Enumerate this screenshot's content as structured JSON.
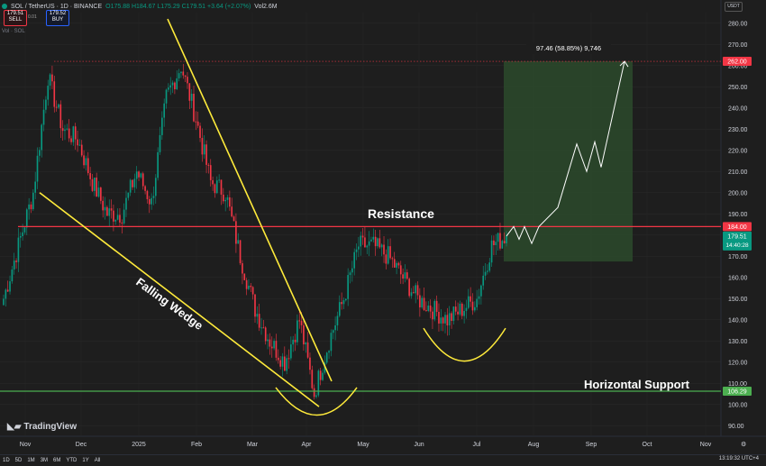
{
  "header": {
    "symbol": "SOL / TetherUS · 1D · BINANCE",
    "ohlc": "O175.88 H184.67 L175.29 C179.51 +3.64 (+2.07%)",
    "volume": "Vol2.6M",
    "sell_price": "179.51",
    "sell_label": "SELL",
    "spread": "0.01",
    "buy_price": "179.52",
    "buy_label": "BUY",
    "sub_indicator": "Vol · SOL",
    "currency": "USDT"
  },
  "branding": {
    "logo_text": "TradingView"
  },
  "bottom_bar": {
    "ranges": [
      "1D",
      "5D",
      "1M",
      "3M",
      "6M",
      "YTD",
      "1Y",
      "All"
    ],
    "clock": "13:19:32 UTC+4"
  },
  "colors": {
    "background": "#1e1e1e",
    "resistance": "#f23645",
    "support": "#4caf50",
    "wedge": "#ffeb3b",
    "target_box": "#2b4a2b",
    "up_candle": "#089981",
    "down_candle": "#f23645"
  },
  "chart_data": {
    "type": "candlestick",
    "x_labels": [
      "Nov",
      "Dec",
      "2025",
      "Feb",
      "Mar",
      "Apr",
      "May",
      "Jun",
      "Jul",
      "Aug",
      "Sep",
      "Oct",
      "Nov"
    ],
    "y_ticks": [
      90,
      100,
      110,
      120,
      130,
      140,
      150,
      160,
      170,
      180,
      190,
      200,
      210,
      220,
      230,
      240,
      250,
      260,
      270,
      280
    ],
    "ylim": [
      85,
      285
    ],
    "close_path": [
      [
        "Nov",
        150
      ],
      [
        "Nov",
        175
      ],
      [
        "Nov",
        200
      ],
      [
        "Nov",
        255
      ],
      [
        "Dec",
        230
      ],
      [
        "Dec",
        225
      ],
      [
        "Dec",
        205
      ],
      [
        "Dec",
        190
      ],
      [
        "2025",
        190
      ],
      [
        "2025",
        210
      ],
      [
        "2025",
        195
      ],
      [
        "2025",
        245
      ],
      [
        "2025",
        260
      ],
      [
        "Feb",
        235
      ],
      [
        "Feb",
        205
      ],
      [
        "Feb",
        200
      ],
      [
        "Mar",
        170
      ],
      [
        "Mar",
        145
      ],
      [
        "Mar",
        130
      ],
      [
        "Mar",
        120
      ],
      [
        "Apr",
        140
      ],
      [
        "Apr",
        105
      ],
      [
        "Apr",
        130
      ],
      [
        "Apr",
        150
      ],
      [
        "May",
        175
      ],
      [
        "May",
        175
      ],
      [
        "May",
        170
      ],
      [
        "Jun",
        160
      ],
      [
        "Jun",
        150
      ],
      [
        "Jun",
        145
      ],
      [
        "Jun",
        140
      ],
      [
        "Jul",
        145
      ],
      [
        "Jul",
        150
      ],
      [
        "Jul",
        175
      ],
      [
        "Jul",
        179.51
      ]
    ],
    "levels": {
      "resistance": 184.0,
      "support": 106.29,
      "current": 179.51,
      "target": 262.0
    },
    "price_labels": {
      "resistance": "184.00",
      "support": "106.29",
      "current": "179.51",
      "countdown": "14:40:28",
      "target": "262.00"
    },
    "projection": [
      179.51,
      184,
      178,
      184,
      176,
      184,
      193,
      223,
      210,
      224,
      212,
      262
    ],
    "annotations": {
      "resistance_label": "Resistance",
      "support_label": "Horizontal Support",
      "wedge_label": "Falling Wedge",
      "target_info": "97.46 (58.85%) 9,746"
    }
  }
}
